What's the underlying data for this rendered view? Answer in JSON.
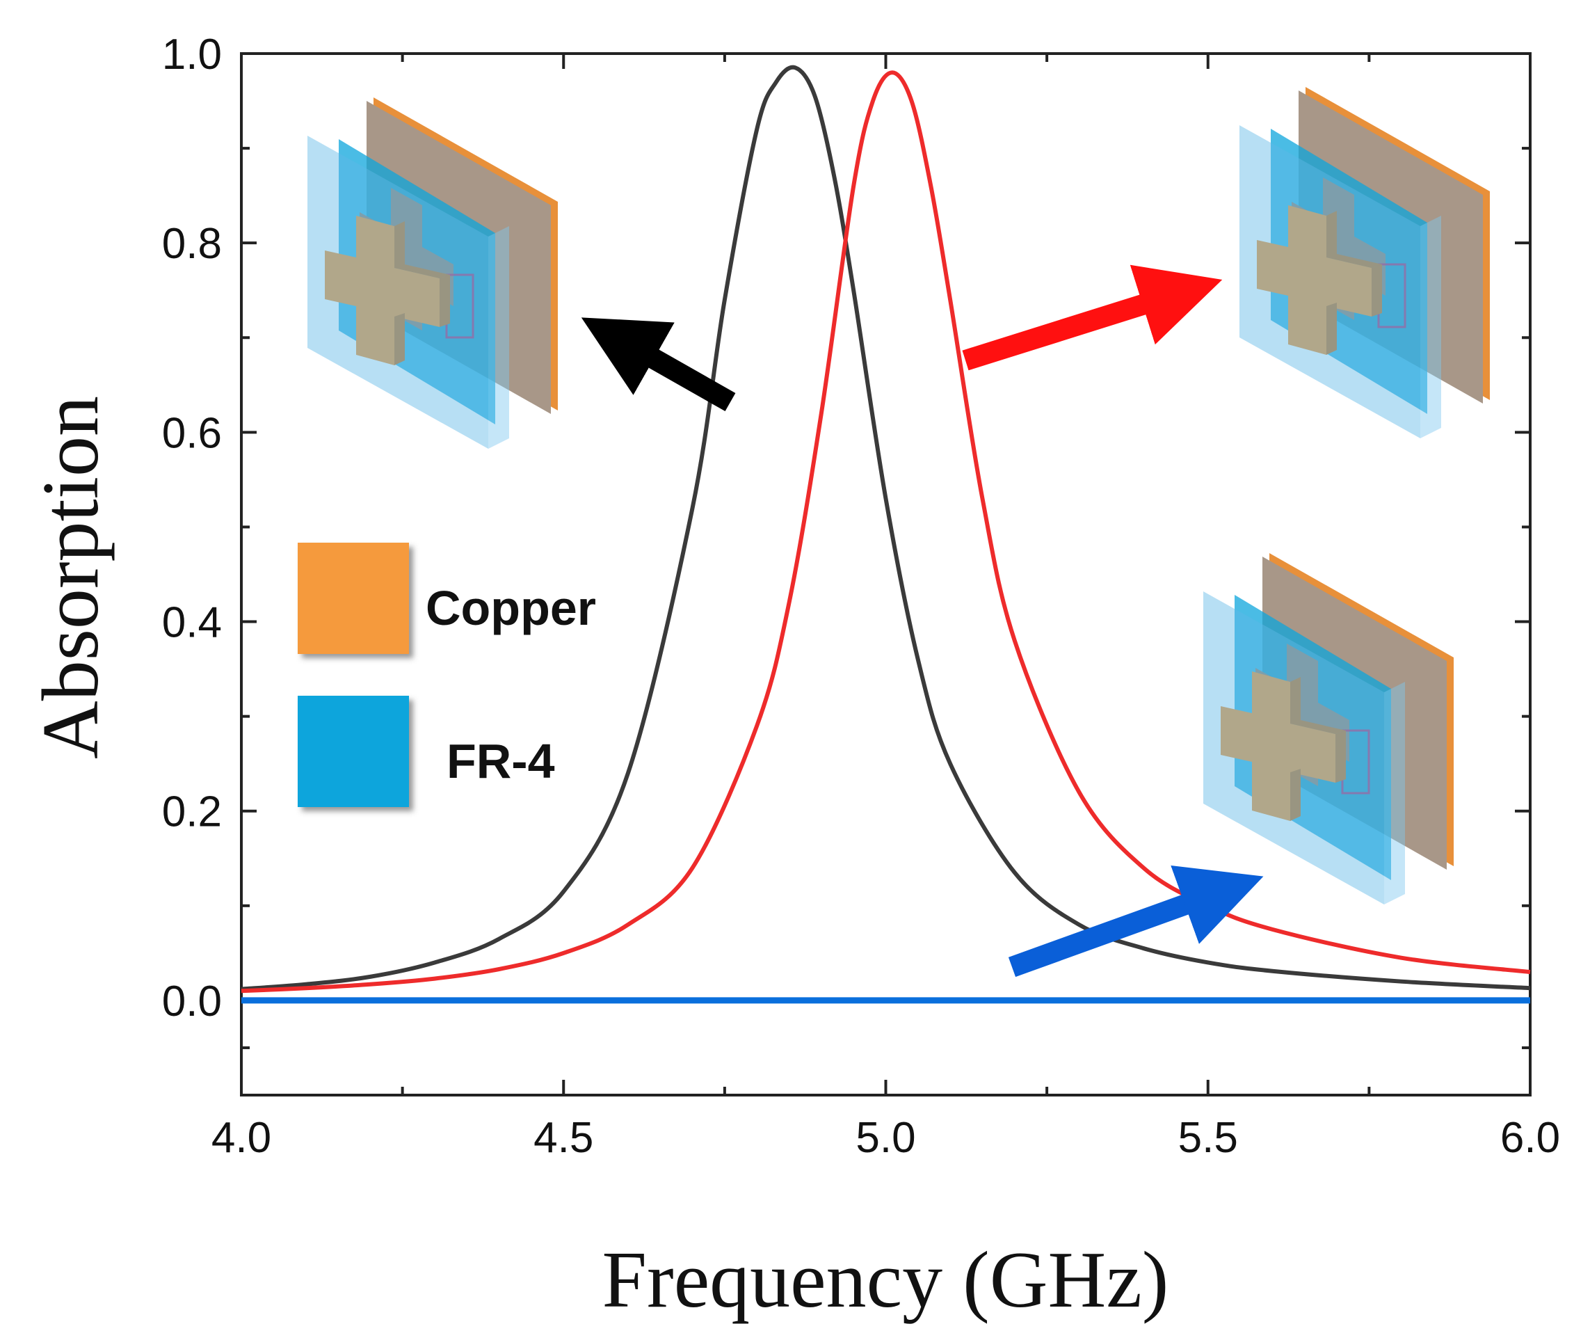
{
  "chart_data": {
    "type": "line",
    "xlabel": "Frequency (GHz)",
    "ylabel": "Absorption",
    "xlim": [
      4.0,
      6.0
    ],
    "ylim": [
      -0.1,
      1.0
    ],
    "x_ticks": [
      4.0,
      4.5,
      5.0,
      5.5,
      6.0
    ],
    "x_tick_labels": [
      "4.0",
      "4.5",
      "5.0",
      "5.5",
      "6.0"
    ],
    "y_ticks": [
      0.0,
      0.2,
      0.4,
      0.6,
      0.8,
      1.0
    ],
    "y_tick_labels": [
      "0.0",
      "0.2",
      "0.4",
      "0.6",
      "0.8",
      "1.0"
    ],
    "grid": false,
    "series": [
      {
        "color": "#3a3a3a",
        "x": [
          4.0,
          4.1,
          4.2,
          4.3,
          4.4,
          4.5,
          4.6,
          4.7,
          4.75,
          4.8,
          4.83,
          4.86,
          4.89,
          4.92,
          4.95,
          5.0,
          5.05,
          5.1,
          5.2,
          5.3,
          5.4,
          5.5,
          5.6,
          5.8,
          6.0
        ],
        "y": [
          0.012,
          0.017,
          0.025,
          0.04,
          0.065,
          0.115,
          0.24,
          0.52,
          0.74,
          0.92,
          0.97,
          0.985,
          0.955,
          0.87,
          0.75,
          0.53,
          0.36,
          0.25,
          0.135,
          0.08,
          0.055,
          0.04,
          0.031,
          0.02,
          0.013
        ]
      },
      {
        "color": "#ee2b2b",
        "x": [
          4.0,
          4.1,
          4.2,
          4.3,
          4.4,
          4.5,
          4.6,
          4.7,
          4.8,
          4.85,
          4.9,
          4.95,
          4.98,
          5.01,
          5.04,
          5.07,
          5.1,
          5.15,
          5.2,
          5.3,
          5.4,
          5.5,
          5.6,
          5.8,
          6.0
        ],
        "y": [
          0.01,
          0.013,
          0.017,
          0.023,
          0.033,
          0.05,
          0.08,
          0.14,
          0.29,
          0.42,
          0.62,
          0.86,
          0.95,
          0.98,
          0.95,
          0.86,
          0.74,
          0.53,
          0.38,
          0.22,
          0.14,
          0.1,
          0.075,
          0.045,
          0.03
        ]
      },
      {
        "color": "#0a6fdc",
        "x": [
          4.0,
          6.0
        ],
        "y": [
          0.0,
          0.0
        ]
      }
    ],
    "annotations": [
      "arrow-black-to-structure",
      "arrow-red-to-structure",
      "arrow-blue-to-structure"
    ]
  },
  "legend": {
    "copper_label": "Copper",
    "copper_color": "#f59a3e",
    "fr4_label": "FR-4",
    "fr4_color": "#0ea5dc"
  }
}
